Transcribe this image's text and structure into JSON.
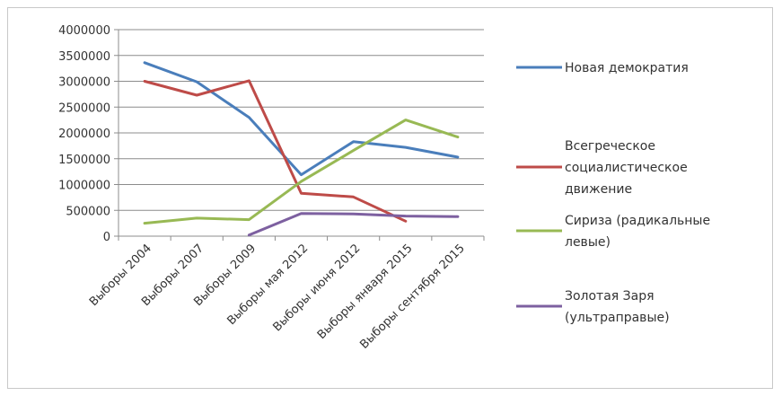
{
  "chart_data": {
    "type": "line",
    "categories": [
      "Выборы 2004",
      "Выборы 2007",
      "Выборы 2009",
      "Выборы мая 2012",
      "Выборы июня 2012",
      "Выборы января 2015",
      "Выборы сентября 2015"
    ],
    "y_ticks": [
      "0",
      "500000",
      "1000000",
      "1500000",
      "2000000",
      "2500000",
      "3000000",
      "3500000",
      "4000000"
    ],
    "ylim": [
      0,
      4000000
    ],
    "grid": true,
    "legend_position": "right",
    "series": [
      {
        "name": "Новая демократия",
        "color": "#4a7ebb",
        "values": [
          3360000,
          2990000,
          2300000,
          1190000,
          1830000,
          1720000,
          1530000
        ]
      },
      {
        "name": "Всегреческое социалистическое движение",
        "legend_lines": [
          "Всегреческое",
          "социалистическое",
          "движение"
        ],
        "color": "#be4b48",
        "values": [
          3000000,
          2730000,
          3010000,
          830000,
          760000,
          290000,
          null
        ]
      },
      {
        "name": "Сириза (радикальные левые)",
        "legend_lines": [
          "Сириза (радикальные",
          "левые)"
        ],
        "color": "#98b954",
        "values": [
          250000,
          350000,
          320000,
          1060000,
          1660000,
          2250000,
          1920000
        ]
      },
      {
        "name": "Золотая Заря (ультраправые)",
        "legend_lines": [
          "Золотая Заря",
          "(ультраправые)"
        ],
        "color": "#7d60a0",
        "values": [
          null,
          null,
          20000,
          440000,
          430000,
          390000,
          380000
        ]
      }
    ]
  }
}
